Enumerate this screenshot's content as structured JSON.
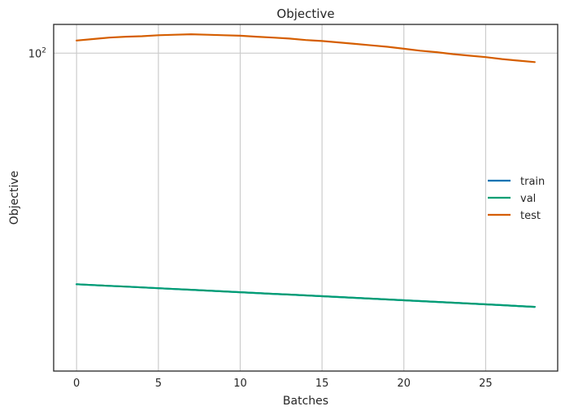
{
  "chart_data": {
    "type": "line",
    "title": "Objective",
    "xlabel": "Batches",
    "ylabel": "Objective",
    "yscale": "log",
    "xlim": [
      -1.4,
      29.4
    ],
    "ylim": [
      52.5,
      106
    ],
    "xticks": [
      0,
      5,
      10,
      15,
      20,
      25
    ],
    "xtick_labels": [
      "0",
      "5",
      "10",
      "15",
      "20",
      "25"
    ],
    "yticks": [
      100
    ],
    "ytick_labels": [
      {
        "base": "10",
        "exp": "2"
      }
    ],
    "grid": true,
    "legend_position": "center-right",
    "x": [
      0,
      1,
      2,
      3,
      4,
      5,
      6,
      7,
      8,
      9,
      10,
      11,
      12,
      13,
      14,
      15,
      16,
      17,
      18,
      19,
      20,
      21,
      22,
      23,
      24,
      25,
      26,
      27,
      28
    ],
    "series": [
      {
        "name": "train",
        "color": "#0072b2",
        "values": [
          62.6,
          62.5,
          62.4,
          62.3,
          62.2,
          62.1,
          62.0,
          61.9,
          61.8,
          61.7,
          61.6,
          61.5,
          61.4,
          61.3,
          61.2,
          61.1,
          61.0,
          60.9,
          60.8,
          60.7,
          60.6,
          60.5,
          60.4,
          60.3,
          60.2,
          60.1,
          60.0,
          59.9,
          59.8
        ]
      },
      {
        "name": "val",
        "color": "#009e73",
        "values": [
          62.6,
          62.5,
          62.4,
          62.3,
          62.2,
          62.1,
          62.0,
          61.9,
          61.8,
          61.7,
          61.6,
          61.5,
          61.4,
          61.3,
          61.2,
          61.1,
          61.0,
          60.9,
          60.8,
          60.7,
          60.6,
          60.5,
          60.4,
          60.3,
          60.2,
          60.1,
          60.0,
          59.9,
          59.8
        ]
      },
      {
        "name": "test",
        "color": "#d55e00",
        "values": [
          102.6,
          102.9,
          103.2,
          103.4,
          103.5,
          103.7,
          103.8,
          103.9,
          103.8,
          103.7,
          103.6,
          103.4,
          103.2,
          103.0,
          102.7,
          102.5,
          102.2,
          101.9,
          101.6,
          101.3,
          100.9,
          100.5,
          100.2,
          99.8,
          99.5,
          99.2,
          98.8,
          98.5,
          98.2
        ]
      }
    ]
  }
}
